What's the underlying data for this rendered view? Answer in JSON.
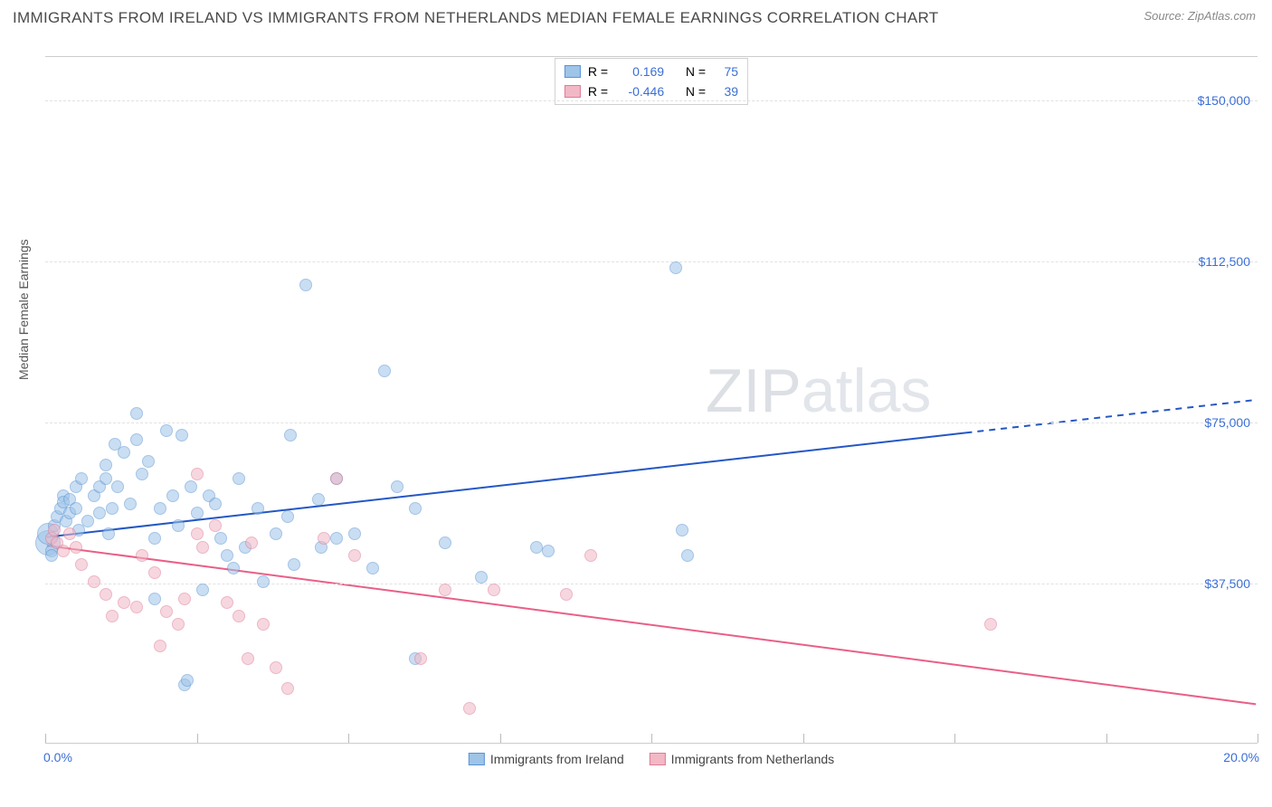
{
  "title": "IMMIGRANTS FROM IRELAND VS IMMIGRANTS FROM NETHERLANDS MEDIAN FEMALE EARNINGS CORRELATION CHART",
  "source": "Source: ZipAtlas.com",
  "watermark": {
    "part1": "ZIP",
    "part2": "atlas"
  },
  "y_axis": {
    "label": "Median Female Earnings",
    "min": 0,
    "max": 160000,
    "ticks": [
      37500,
      75000,
      112500,
      150000
    ],
    "tick_labels": [
      "$37,500",
      "$75,000",
      "$112,500",
      "$150,000"
    ],
    "label_color": "#3b6fd6",
    "fontsize": 14
  },
  "x_axis": {
    "min": 0,
    "max": 20,
    "ticks": [
      0,
      2.5,
      5,
      7.5,
      10,
      12.5,
      15,
      17.5,
      20
    ],
    "end_labels": {
      "left": "0.0%",
      "right": "20.0%"
    },
    "label_color": "#3b6fd6",
    "fontsize": 14
  },
  "series": [
    {
      "name": "Immigrants from Ireland",
      "color_fill": "#9ec4e8",
      "color_stroke": "#5a93d4",
      "fill_opacity": 0.55,
      "r_value": "0.169",
      "n_value": "75",
      "trend": {
        "y_at_xmin": 48000,
        "y_at_xmax": 80000,
        "solid_until_x": 15.2,
        "color": "#2457c5",
        "width": 2
      },
      "points": [
        [
          0.05,
          47000
        ],
        [
          0.05,
          49000
        ],
        [
          0.1,
          45000
        ],
        [
          0.1,
          44000
        ],
        [
          0.15,
          51000
        ],
        [
          0.2,
          53000
        ],
        [
          0.25,
          55000
        ],
        [
          0.3,
          58000
        ],
        [
          0.3,
          56500
        ],
        [
          0.35,
          52000
        ],
        [
          0.4,
          57000
        ],
        [
          0.4,
          54000
        ],
        [
          0.5,
          60000
        ],
        [
          0.5,
          55000
        ],
        [
          0.55,
          50000
        ],
        [
          0.6,
          62000
        ],
        [
          0.7,
          52000
        ],
        [
          0.8,
          58000
        ],
        [
          0.9,
          54000
        ],
        [
          0.9,
          60000
        ],
        [
          1.0,
          65000
        ],
        [
          1.0,
          62000
        ],
        [
          1.05,
          49000
        ],
        [
          1.1,
          55000
        ],
        [
          1.15,
          70000
        ],
        [
          1.2,
          60000
        ],
        [
          1.3,
          68000
        ],
        [
          1.4,
          56000
        ],
        [
          1.5,
          71000
        ],
        [
          1.5,
          77000
        ],
        [
          1.6,
          63000
        ],
        [
          1.7,
          66000
        ],
        [
          1.8,
          34000
        ],
        [
          1.8,
          48000
        ],
        [
          1.9,
          55000
        ],
        [
          2.0,
          73000
        ],
        [
          2.1,
          58000
        ],
        [
          2.2,
          51000
        ],
        [
          2.25,
          72000
        ],
        [
          2.3,
          14000
        ],
        [
          2.35,
          15000
        ],
        [
          2.4,
          60000
        ],
        [
          2.5,
          54000
        ],
        [
          2.6,
          36000
        ],
        [
          2.7,
          58000
        ],
        [
          2.8,
          56000
        ],
        [
          2.9,
          48000
        ],
        [
          3.0,
          44000
        ],
        [
          3.1,
          41000
        ],
        [
          3.2,
          62000
        ],
        [
          3.3,
          46000
        ],
        [
          3.5,
          55000
        ],
        [
          3.6,
          38000
        ],
        [
          3.8,
          49000
        ],
        [
          4.0,
          53000
        ],
        [
          4.05,
          72000
        ],
        [
          4.1,
          42000
        ],
        [
          4.3,
          107000
        ],
        [
          4.5,
          57000
        ],
        [
          4.55,
          46000
        ],
        [
          4.8,
          62000
        ],
        [
          4.8,
          48000
        ],
        [
          5.1,
          49000
        ],
        [
          5.4,
          41000
        ],
        [
          5.6,
          87000
        ],
        [
          5.8,
          60000
        ],
        [
          6.1,
          20000
        ],
        [
          6.1,
          55000
        ],
        [
          6.6,
          47000
        ],
        [
          7.2,
          39000
        ],
        [
          8.1,
          46000
        ],
        [
          8.3,
          45000
        ],
        [
          10.4,
          111000
        ],
        [
          10.5,
          50000
        ],
        [
          10.6,
          44000
        ]
      ]
    },
    {
      "name": "Immigrants from Netherlands",
      "color_fill": "#f2b8c6",
      "color_stroke": "#e07a98",
      "fill_opacity": 0.55,
      "r_value": "-0.446",
      "n_value": "39",
      "trend": {
        "y_at_xmin": 46000,
        "y_at_xmax": 9000,
        "solid_until_x": 20,
        "color": "#e95f87",
        "width": 2
      },
      "points": [
        [
          0.1,
          48000
        ],
        [
          0.15,
          50000
        ],
        [
          0.2,
          47000
        ],
        [
          0.3,
          45000
        ],
        [
          0.4,
          49000
        ],
        [
          0.5,
          46000
        ],
        [
          0.6,
          42000
        ],
        [
          0.8,
          38000
        ],
        [
          1.0,
          35000
        ],
        [
          1.1,
          30000
        ],
        [
          1.3,
          33000
        ],
        [
          1.5,
          32000
        ],
        [
          1.6,
          44000
        ],
        [
          1.8,
          40000
        ],
        [
          1.9,
          23000
        ],
        [
          2.0,
          31000
        ],
        [
          2.2,
          28000
        ],
        [
          2.3,
          34000
        ],
        [
          2.5,
          63000
        ],
        [
          2.5,
          49000
        ],
        [
          2.6,
          46000
        ],
        [
          2.8,
          51000
        ],
        [
          3.0,
          33000
        ],
        [
          3.2,
          30000
        ],
        [
          3.35,
          20000
        ],
        [
          3.4,
          47000
        ],
        [
          3.6,
          28000
        ],
        [
          3.8,
          18000
        ],
        [
          4.0,
          13000
        ],
        [
          4.6,
          48000
        ],
        [
          4.8,
          62000
        ],
        [
          5.1,
          44000
        ],
        [
          6.2,
          20000
        ],
        [
          6.6,
          36000
        ],
        [
          7.0,
          8500
        ],
        [
          7.4,
          36000
        ],
        [
          8.6,
          35000
        ],
        [
          9.0,
          44000
        ],
        [
          15.6,
          28000
        ]
      ]
    }
  ],
  "marker_radius": 7,
  "default_marker_radius": 7,
  "big_markers": [
    {
      "series": 0,
      "index": 0,
      "radius": 14
    },
    {
      "series": 0,
      "index": 1,
      "radius": 12
    }
  ],
  "legend_top_labels": {
    "R": "R =",
    "N": "N ="
  },
  "background_color": "#ffffff",
  "grid_color": "#e1e1e1"
}
